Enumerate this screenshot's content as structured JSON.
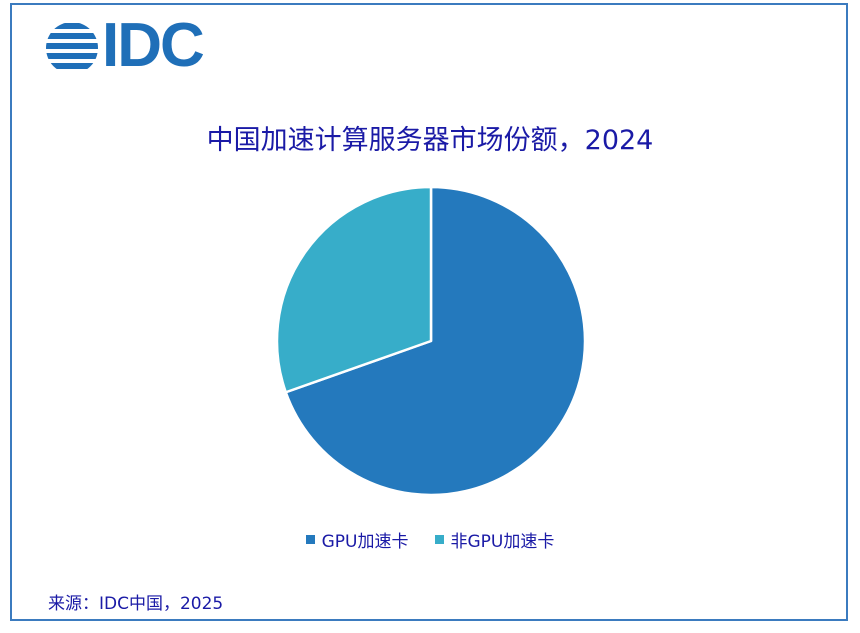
{
  "brand": {
    "logo_text": "IDC"
  },
  "chart_data": {
    "type": "pie",
    "title": "中国加速计算服务器市场份额，2024",
    "categories": [
      "GPU加速卡",
      "非GPU加速卡"
    ],
    "values": [
      69.6,
      30.4
    ],
    "unit": "%",
    "colors": [
      "#2479bd",
      "#37adc9"
    ],
    "legend_position": "bottom"
  },
  "source": "来源：IDC中国，2025"
}
